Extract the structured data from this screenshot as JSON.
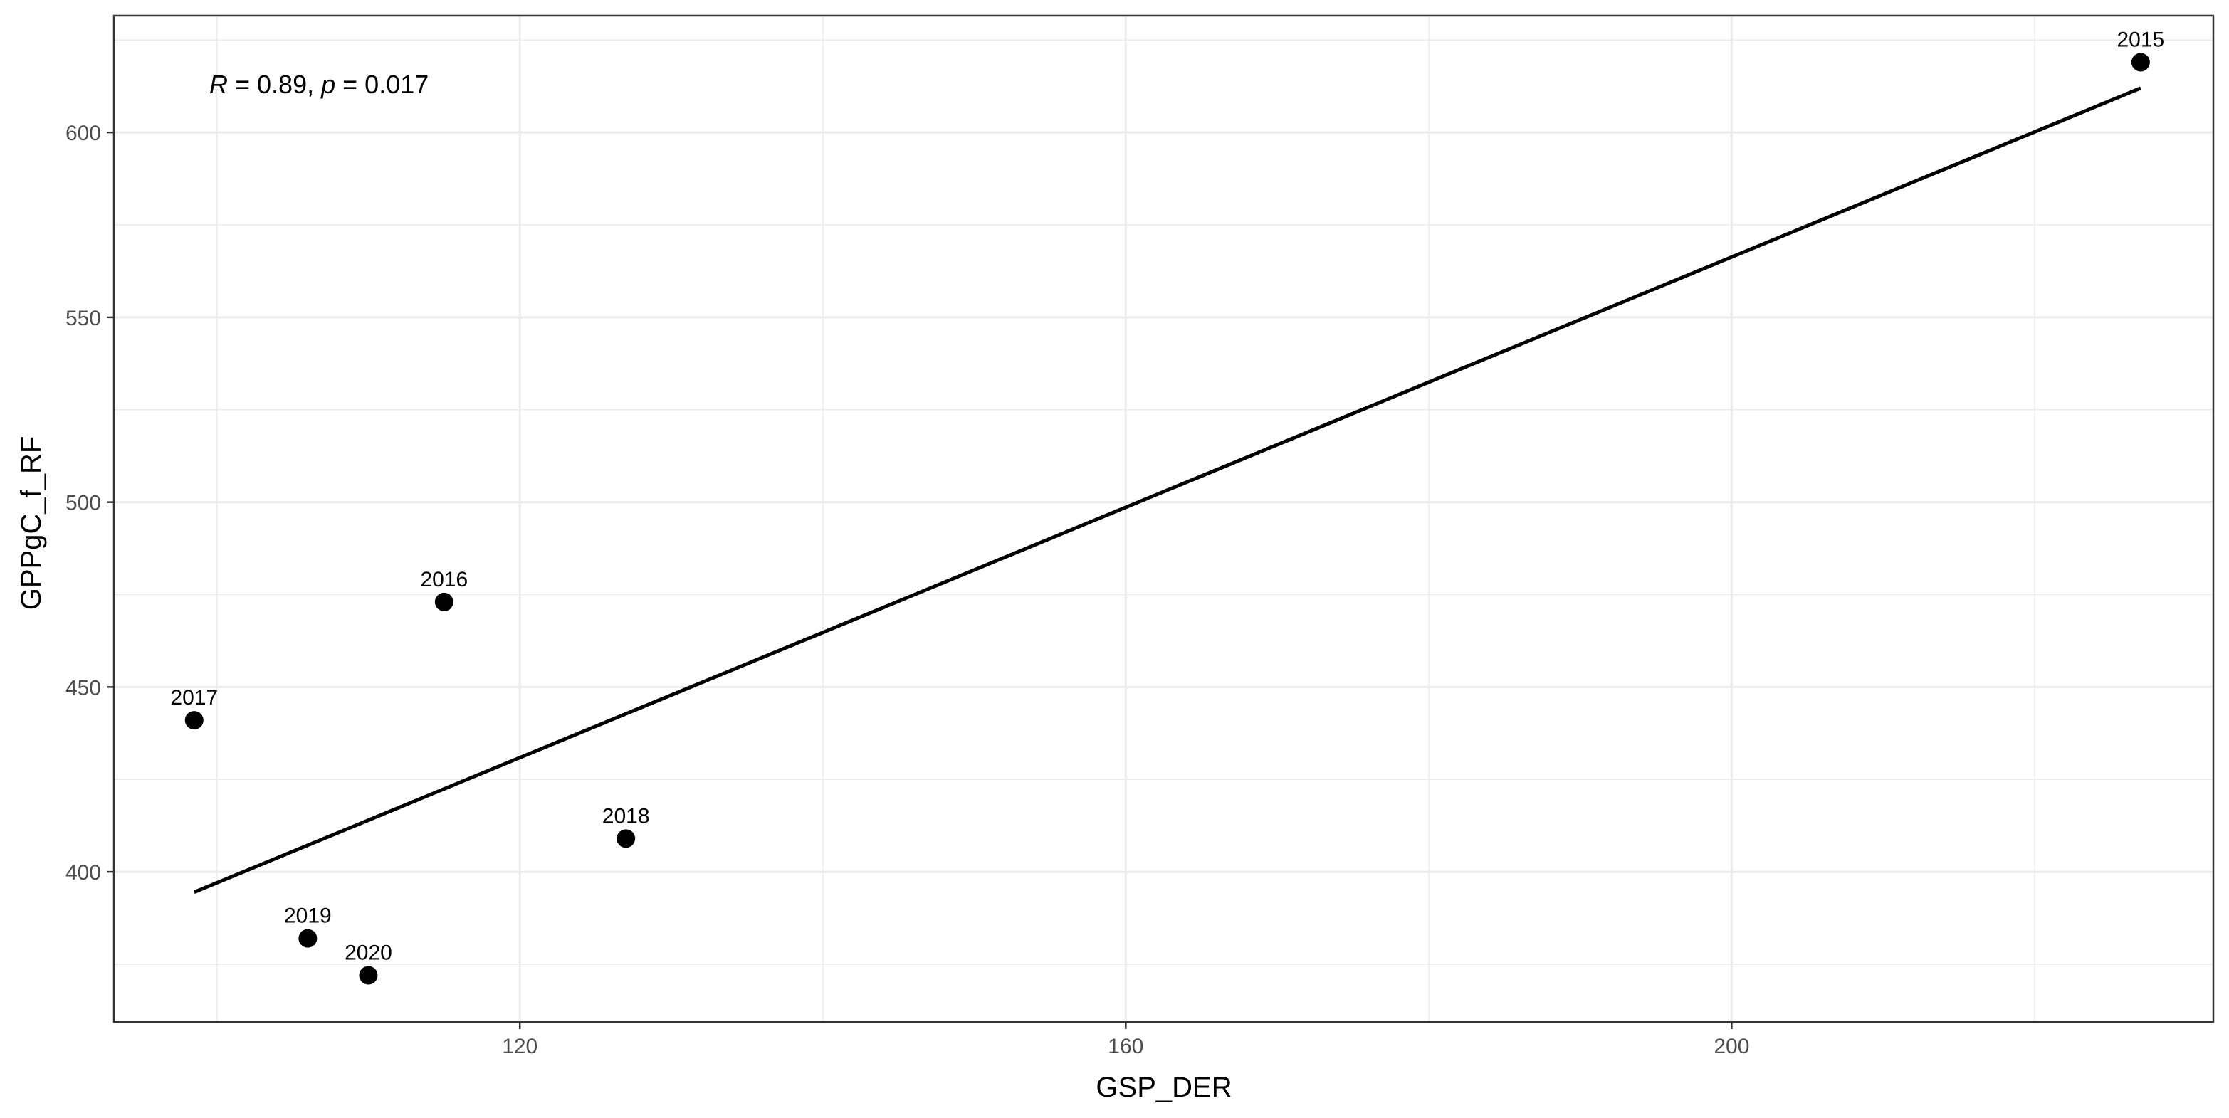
{
  "chart_data": {
    "type": "scatter",
    "title": "",
    "xlabel": "GSP_DER",
    "ylabel": "GPPgC_f_RF",
    "xlim": [
      93.2,
      231.8
    ],
    "ylim": [
      359.4,
      631.6
    ],
    "x_ticks": [
      120,
      160,
      200
    ],
    "y_ticks": [
      400,
      450,
      500,
      550,
      600
    ],
    "x_tick_labels": [
      "120",
      "160",
      "200"
    ],
    "y_tick_labels": [
      "400",
      "450",
      "500",
      "550",
      "600"
    ],
    "x_minor_ticks": [
      100,
      140,
      180,
      220
    ],
    "y_minor_ticks": [
      375,
      425,
      475,
      525,
      575,
      625
    ],
    "grid": true,
    "points": [
      {
        "label": "2015",
        "x": 227.0,
        "y": 619.0
      },
      {
        "label": "2016",
        "x": 115.0,
        "y": 473.0
      },
      {
        "label": "2017",
        "x": 98.5,
        "y": 441.0
      },
      {
        "label": "2018",
        "x": 127.0,
        "y": 409.0
      },
      {
        "label": "2019",
        "x": 106.0,
        "y": 382.0
      },
      {
        "label": "2020",
        "x": 110.0,
        "y": 372.0
      }
    ],
    "regression_line": {
      "x": [
        98.5,
        227.0
      ],
      "y": [
        394.5,
        612.0
      ]
    },
    "annotation": {
      "R_symbol": "R",
      "r_text": " = 0.89, ",
      "p_symbol": "p",
      "p_text": " = 0.017"
    },
    "colors": {
      "points": "#000000",
      "line": "#000000",
      "grid": "#ebebeb",
      "panel_border": "#333333"
    }
  }
}
